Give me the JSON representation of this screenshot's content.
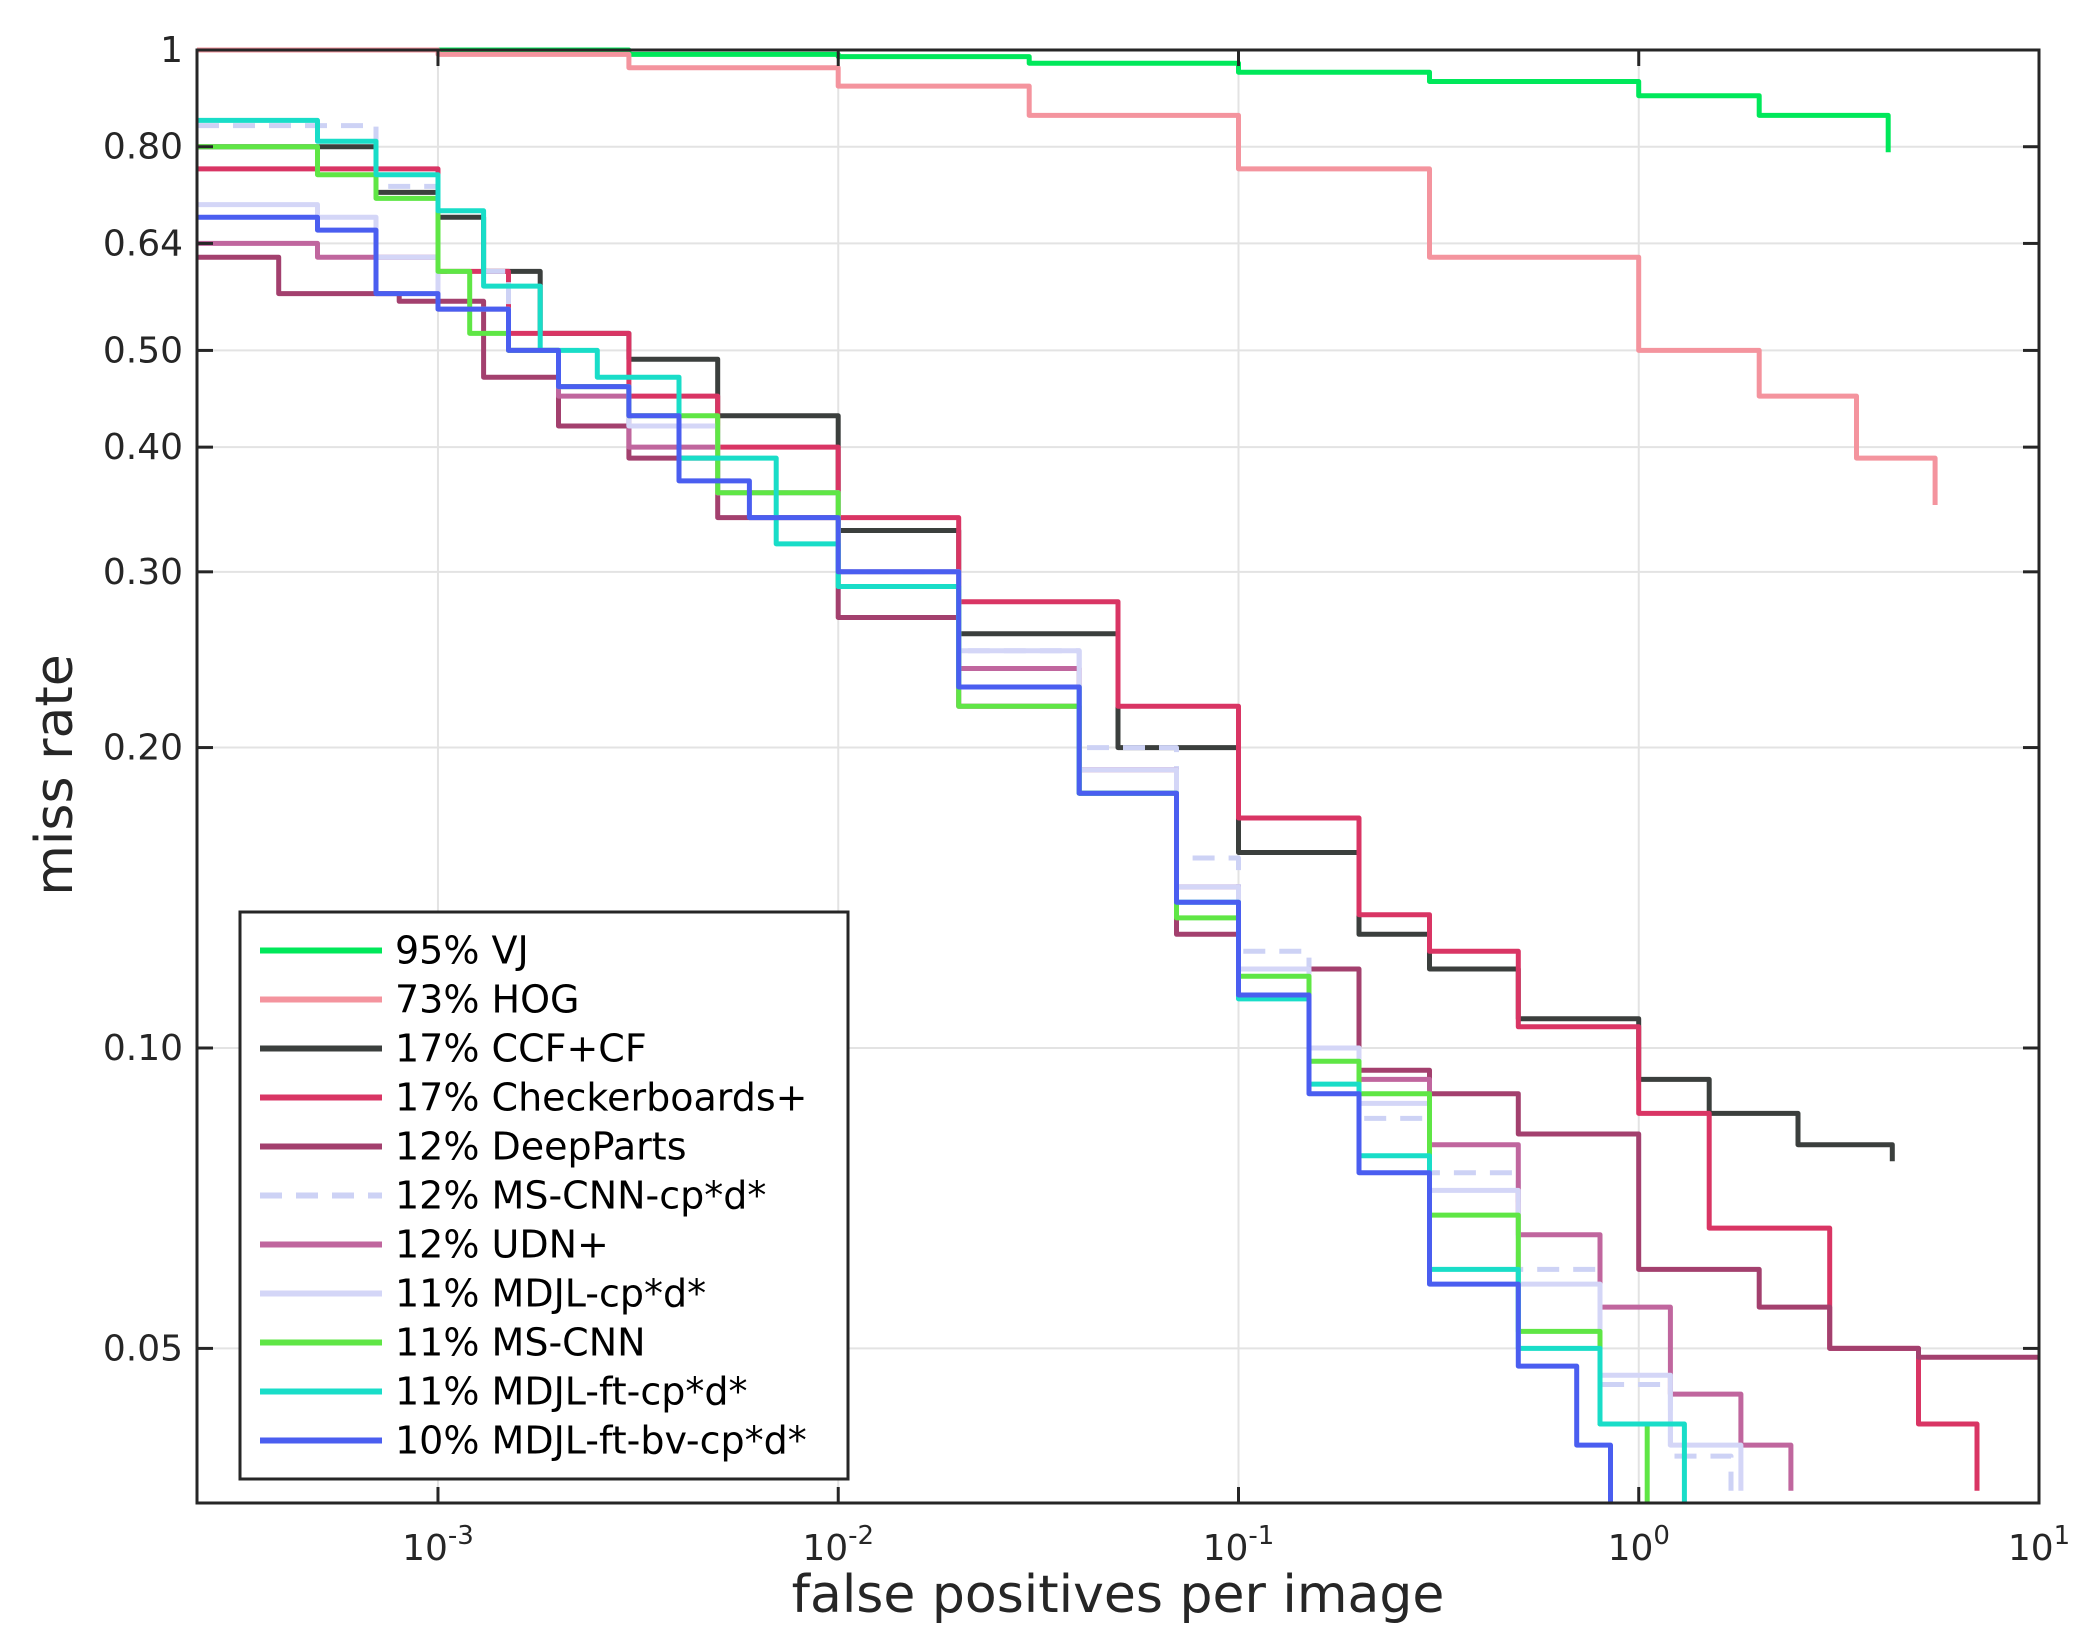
{
  "chart_data": {
    "type": "line",
    "title": "",
    "xlabel": "false positives per image",
    "ylabel": "miss rate",
    "xscale": "log",
    "yscale": "log",
    "xlim": [
      0.00025,
      10
    ],
    "ylim": [
      0.035,
      1
    ],
    "xticks": [
      {
        "value": 0.001,
        "base": "10",
        "exp": "-3"
      },
      {
        "value": 0.01,
        "base": "10",
        "exp": "-2"
      },
      {
        "value": 0.1,
        "base": "10",
        "exp": "-1"
      },
      {
        "value": 1,
        "base": "10",
        "exp": "0"
      },
      {
        "value": 10,
        "base": "10",
        "exp": "1"
      }
    ],
    "yticks": [
      {
        "value": 1,
        "label": "1"
      },
      {
        "value": 0.8,
        "label": "0.80"
      },
      {
        "value": 0.64,
        "label": "0.64"
      },
      {
        "value": 0.5,
        "label": "0.50"
      },
      {
        "value": 0.4,
        "label": "0.40"
      },
      {
        "value": 0.3,
        "label": "0.30"
      },
      {
        "value": 0.2,
        "label": "0.20"
      },
      {
        "value": 0.1,
        "label": "0.10"
      },
      {
        "value": 0.05,
        "label": "0.05"
      }
    ],
    "grid": true,
    "legend_position": "bottom-left",
    "series": [
      {
        "name": "95% VJ",
        "color": "#00e85a",
        "dash": false,
        "x": [
          0.00025,
          0.001,
          0.003,
          0.01,
          0.03,
          0.1,
          0.3,
          1,
          2,
          4.2
        ],
        "y": [
          1.0,
          1.0,
          0.99,
          0.985,
          0.97,
          0.95,
          0.93,
          0.9,
          0.86,
          0.79
        ]
      },
      {
        "name": "73% HOG",
        "color": "#f4949e",
        "dash": false,
        "x": [
          0.00025,
          0.001,
          0.003,
          0.01,
          0.03,
          0.1,
          0.3,
          1,
          2,
          3.5,
          5.5
        ],
        "y": [
          1.0,
          0.99,
          0.96,
          0.92,
          0.86,
          0.76,
          0.62,
          0.5,
          0.45,
          0.39,
          0.35
        ]
      },
      {
        "name": "17% CCF+CF",
        "color": "#3b3f3d",
        "dash": false,
        "x": [
          0.00025,
          0.0005,
          0.0007,
          0.001,
          0.0013,
          0.0018,
          0.003,
          0.005,
          0.01,
          0.02,
          0.05,
          0.1,
          0.2,
          0.3,
          0.5,
          1,
          1.5,
          2.5,
          4.3
        ],
        "y": [
          0.8,
          0.8,
          0.72,
          0.68,
          0.6,
          0.52,
          0.49,
          0.43,
          0.33,
          0.26,
          0.2,
          0.157,
          0.13,
          0.12,
          0.107,
          0.093,
          0.086,
          0.08,
          0.077
        ]
      },
      {
        "name": "17% Checkerboards+",
        "color": "#d93564",
        "dash": false,
        "x": [
          0.00025,
          0.0005,
          0.001,
          0.0015,
          0.003,
          0.005,
          0.01,
          0.02,
          0.05,
          0.1,
          0.2,
          0.3,
          0.5,
          1,
          1.5,
          3,
          5,
          7
        ],
        "y": [
          0.76,
          0.76,
          0.6,
          0.52,
          0.45,
          0.4,
          0.34,
          0.28,
          0.22,
          0.17,
          0.136,
          0.125,
          0.105,
          0.086,
          0.066,
          0.05,
          0.042,
          0.036
        ]
      },
      {
        "name": "12% DeepParts",
        "color": "#a3406e",
        "dash": false,
        "x": [
          0.00025,
          0.0004,
          0.0008,
          0.0013,
          0.002,
          0.003,
          0.005,
          0.01,
          0.02,
          0.04,
          0.07,
          0.1,
          0.2,
          0.3,
          0.5,
          1,
          2,
          3,
          5,
          10
        ],
        "y": [
          0.62,
          0.57,
          0.56,
          0.47,
          0.42,
          0.39,
          0.34,
          0.27,
          0.22,
          0.18,
          0.13,
          0.12,
          0.095,
          0.09,
          0.082,
          0.06,
          0.055,
          0.05,
          0.049,
          0.049
        ]
      },
      {
        "name": "12% MS-CNN-cp*d*",
        "color": "#cdd2f5",
        "dash": true,
        "x": [
          0.00025,
          0.0005,
          0.0007,
          0.001,
          0.0015,
          0.002,
          0.003,
          0.005,
          0.01,
          0.02,
          0.04,
          0.07,
          0.1,
          0.15,
          0.2,
          0.3,
          0.5,
          0.8,
          1.2,
          1.7
        ],
        "y": [
          0.84,
          0.84,
          0.73,
          0.6,
          0.5,
          0.46,
          0.42,
          0.36,
          0.3,
          0.25,
          0.2,
          0.155,
          0.125,
          0.1,
          0.085,
          0.075,
          0.06,
          0.046,
          0.039,
          0.036
        ]
      },
      {
        "name": "12% UDN+",
        "color": "#c0669e",
        "dash": false,
        "x": [
          0.00025,
          0.0005,
          0.001,
          0.0015,
          0.002,
          0.003,
          0.005,
          0.01,
          0.02,
          0.04,
          0.07,
          0.1,
          0.15,
          0.2,
          0.3,
          0.5,
          0.8,
          1.2,
          1.8,
          2.4
        ],
        "y": [
          0.64,
          0.62,
          0.55,
          0.5,
          0.45,
          0.4,
          0.36,
          0.3,
          0.24,
          0.19,
          0.145,
          0.12,
          0.1,
          0.093,
          0.08,
          0.065,
          0.055,
          0.045,
          0.04,
          0.036
        ]
      },
      {
        "name": "11% MDJL-cp*d*",
        "color": "#d4d6f7",
        "dash": false,
        "x": [
          0.00025,
          0.0005,
          0.0007,
          0.001,
          0.0015,
          0.002,
          0.003,
          0.005,
          0.01,
          0.02,
          0.04,
          0.07,
          0.1,
          0.15,
          0.2,
          0.3,
          0.5,
          0.8,
          1.2,
          1.8
        ],
        "y": [
          0.7,
          0.68,
          0.62,
          0.55,
          0.5,
          0.46,
          0.42,
          0.36,
          0.3,
          0.25,
          0.19,
          0.145,
          0.12,
          0.1,
          0.088,
          0.072,
          0.058,
          0.047,
          0.04,
          0.036
        ]
      },
      {
        "name": "11% MS-CNN",
        "color": "#5fe645",
        "dash": false,
        "x": [
          0.00025,
          0.0005,
          0.0007,
          0.001,
          0.0012,
          0.0015,
          0.002,
          0.003,
          0.005,
          0.01,
          0.02,
          0.04,
          0.07,
          0.1,
          0.15,
          0.2,
          0.3,
          0.5,
          0.8,
          1.05
        ],
        "y": [
          0.8,
          0.75,
          0.71,
          0.6,
          0.52,
          0.5,
          0.46,
          0.43,
          0.36,
          0.29,
          0.22,
          0.18,
          0.135,
          0.118,
          0.097,
          0.09,
          0.068,
          0.052,
          0.042,
          0.035
        ]
      },
      {
        "name": "11% MDJL-ft-cp*d*",
        "color": "#19ddc8",
        "dash": false,
        "x": [
          0.00025,
          0.0005,
          0.0007,
          0.001,
          0.0013,
          0.0018,
          0.0025,
          0.004,
          0.007,
          0.01,
          0.02,
          0.04,
          0.07,
          0.1,
          0.15,
          0.2,
          0.3,
          0.5,
          0.8,
          1.3
        ],
        "y": [
          0.85,
          0.81,
          0.75,
          0.69,
          0.58,
          0.5,
          0.47,
          0.39,
          0.32,
          0.29,
          0.23,
          0.18,
          0.14,
          0.112,
          0.092,
          0.078,
          0.06,
          0.05,
          0.042,
          0.035
        ]
      },
      {
        "name": "10% MDJL-ft-bv-cp*d*",
        "color": "#4a5ef0",
        "dash": false,
        "x": [
          0.00025,
          0.0005,
          0.0007,
          0.001,
          0.0015,
          0.002,
          0.003,
          0.004,
          0.006,
          0.01,
          0.02,
          0.04,
          0.07,
          0.1,
          0.15,
          0.2,
          0.3,
          0.5,
          0.7,
          0.85
        ],
        "y": [
          0.68,
          0.66,
          0.57,
          0.55,
          0.5,
          0.46,
          0.43,
          0.37,
          0.34,
          0.3,
          0.23,
          0.18,
          0.14,
          0.113,
          0.09,
          0.075,
          0.058,
          0.048,
          0.04,
          0.035
        ]
      }
    ]
  }
}
